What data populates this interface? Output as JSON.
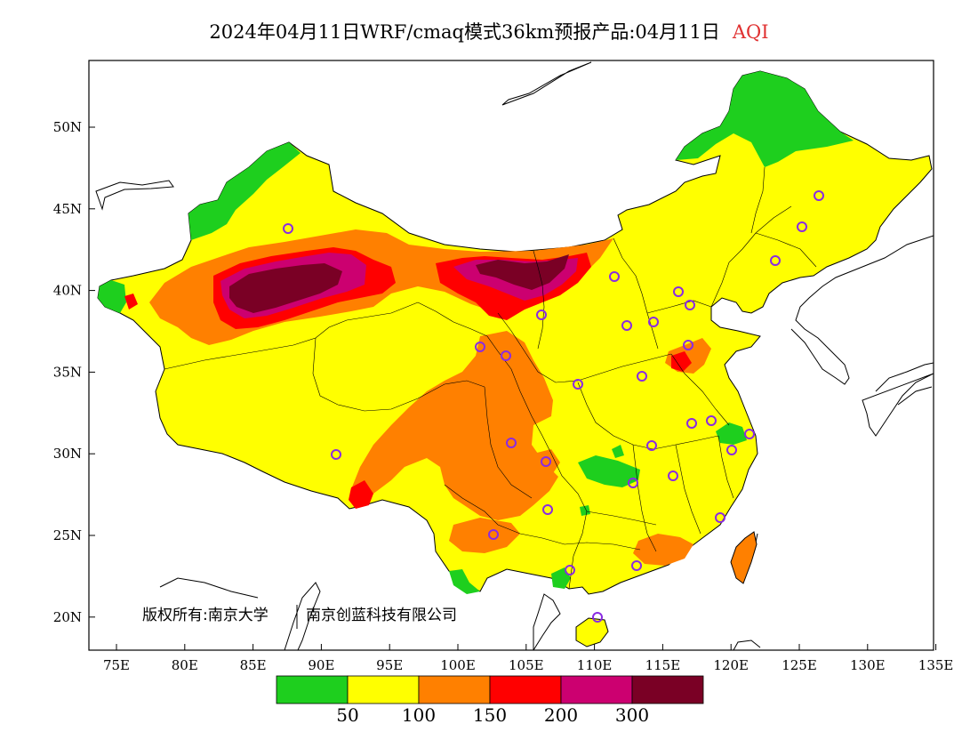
{
  "title": {
    "text": "2024年04月11日WRF/cmaq模式36km预报产品:04月11日",
    "variable": "AQI",
    "variable_color": "#e03030"
  },
  "copyright": {
    "left": "版权所有:南京大学",
    "right": "南京创蓝科技有限公司"
  },
  "axes": {
    "lon_ticks": [
      "75E",
      "80E",
      "85E",
      "90E",
      "95E",
      "100E",
      "105E",
      "110E",
      "115E",
      "120E",
      "125E",
      "130E",
      "135E"
    ],
    "lat_ticks": [
      "50N",
      "45N",
      "40N",
      "35N",
      "30N",
      "25N",
      "20N"
    ]
  },
  "legend": {
    "colors": [
      "#1ecf1e",
      "#ffff00",
      "#ff8000",
      "#ff0000",
      "#cc0070",
      "#7a0025"
    ],
    "labels": [
      "50",
      "100",
      "150",
      "200",
      "300"
    ]
  },
  "colors": {
    "good": "#1ecf1e",
    "moderate": "#ffff00",
    "usg": "#ff8000",
    "unhealthy": "#ff0000",
    "very_unhealthy": "#cc0070",
    "hazardous": "#7a0025",
    "city_marker": "#8a2be2"
  }
}
